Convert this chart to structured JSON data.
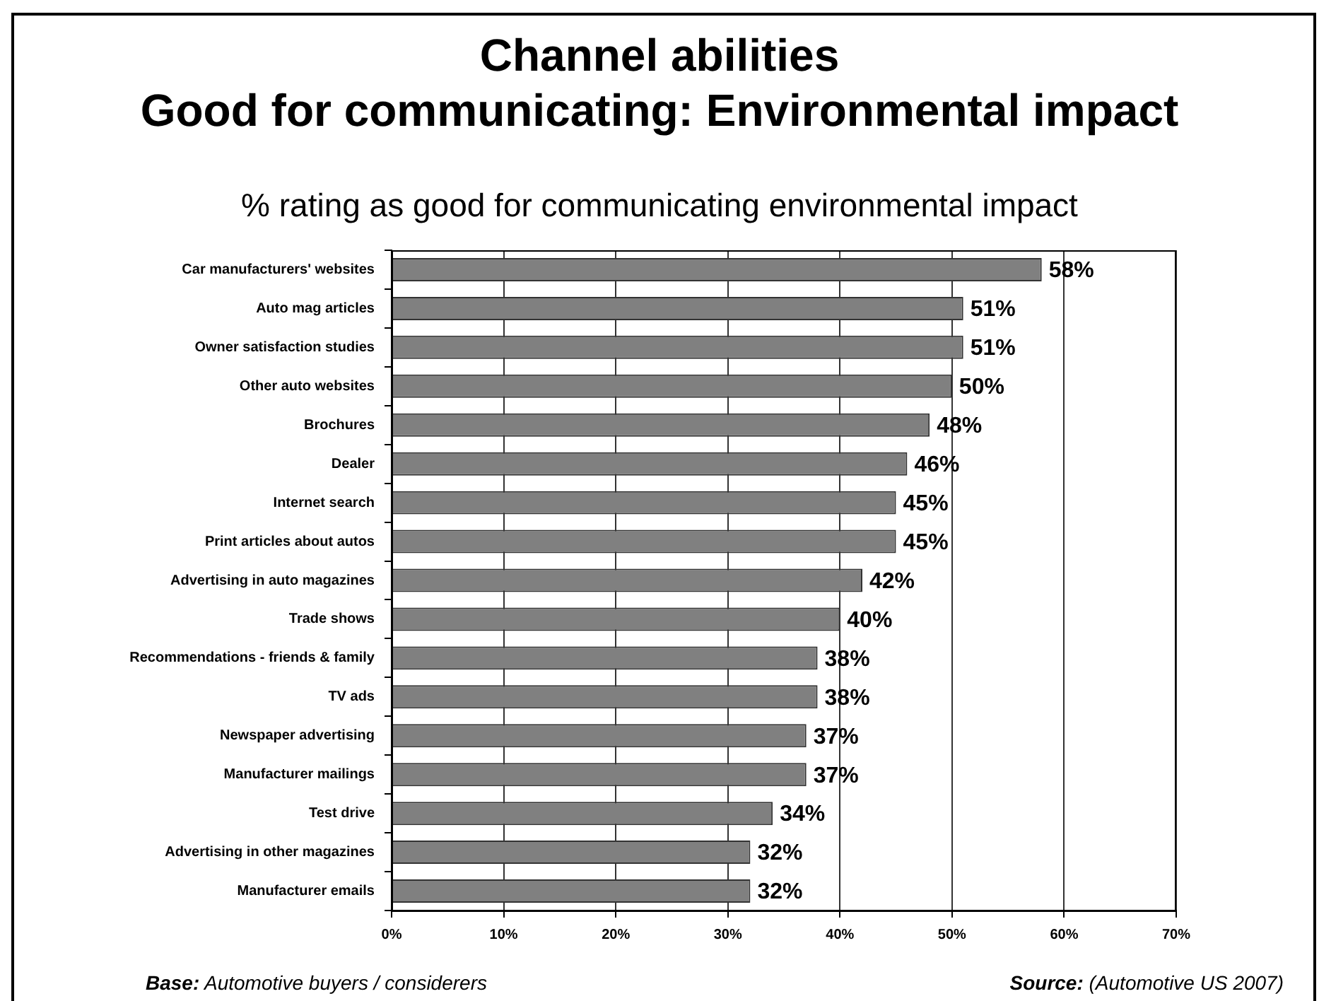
{
  "chart_data": {
    "type": "bar",
    "orientation": "horizontal",
    "title": "Channel abilities\nGood for communicating: Environmental impact",
    "subtitle": "% rating as good for communicating environmental impact",
    "categories": [
      "Car manufacturers' websites",
      "Auto mag articles",
      "Owner satisfaction studies",
      "Other auto websites",
      "Brochures",
      "Dealer",
      "Internet search",
      "Print articles about autos",
      "Advertising in auto magazines",
      "Trade shows",
      "Recommendations - friends & family",
      "TV ads",
      "Newspaper advertising",
      "Manufacturer mailings",
      "Test drive",
      "Advertising in other magazines",
      "Manufacturer emails"
    ],
    "values": [
      58,
      51,
      51,
      50,
      48,
      46,
      45,
      45,
      42,
      40,
      38,
      38,
      37,
      37,
      34,
      32,
      32
    ],
    "value_labels": [
      "58%",
      "51%",
      "51%",
      "50%",
      "48%",
      "46%",
      "45%",
      "45%",
      "42%",
      "40%",
      "38%",
      "38%",
      "37%",
      "37%",
      "34%",
      "32%",
      "32%"
    ],
    "color": "#808080",
    "xlim": [
      0,
      70
    ],
    "xticks": [
      {
        "value": 0,
        "label": "0%"
      },
      {
        "value": 10,
        "label": "10%"
      },
      {
        "value": 20,
        "label": "20%"
      },
      {
        "value": 30,
        "label": "30%"
      },
      {
        "value": 40,
        "label": "40%"
      },
      {
        "value": 50,
        "label": "50%"
      },
      {
        "value": 60,
        "label": "60%"
      },
      {
        "value": 70,
        "label": "70%"
      }
    ],
    "grid": "x",
    "annotations": [
      "Base: Automotive buyers / considerers",
      "Source: (Automotive US 2007)"
    ]
  }
}
